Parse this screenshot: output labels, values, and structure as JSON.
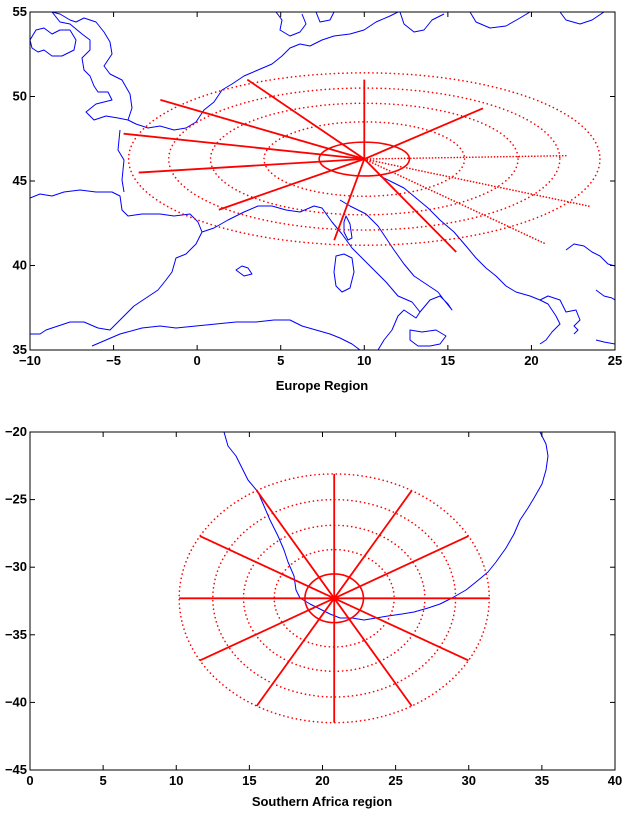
{
  "colors": {
    "coastline": "#0000ff",
    "grid": "#ff0000",
    "axes": "#000000",
    "background": "#ffffff"
  },
  "chart_data": [
    {
      "type": "map",
      "xlabel": "Europe Region",
      "xlim": [
        -10,
        25
      ],
      "ylim": [
        35,
        55
      ],
      "xticks": [
        -10,
        -5,
        0,
        5,
        10,
        15,
        20,
        25
      ],
      "yticks": [
        35,
        40,
        45,
        50,
        55
      ],
      "xtick_labels": [
        "−10",
        "−5",
        "0",
        "5",
        "10",
        "15",
        "20",
        "25"
      ],
      "ytick_labels": [
        "35",
        "40",
        "45",
        "50",
        "55"
      ],
      "grid": {
        "center": [
          10,
          46.3
        ],
        "rings": [
          {
            "rx": 2.7,
            "ry": 1.0,
            "style": "solid"
          },
          {
            "rx": 6.0,
            "ry": 2.2,
            "style": "dotted"
          },
          {
            "rx": 9.2,
            "ry": 3.3,
            "style": "dotted"
          },
          {
            "rx": 11.7,
            "ry": 4.2,
            "style": "dotted"
          },
          {
            "rx": 14.1,
            "ry": 5.1,
            "style": "dotted"
          }
        ],
        "spokes": [
          {
            "end": [
              -4.4,
              47.8
            ],
            "style": "solid"
          },
          {
            "end": [
              -2.2,
              49.8
            ],
            "style": "solid"
          },
          {
            "end": [
              3.0,
              51.0
            ],
            "style": "solid"
          },
          {
            "end": [
              10.0,
              51.0
            ],
            "style": "solid"
          },
          {
            "end": [
              17.1,
              49.3
            ],
            "style": "solid"
          },
          {
            "end": [
              22.1,
              46.5
            ],
            "style": "dotted"
          },
          {
            "end": [
              23.5,
              43.5
            ],
            "style": "dotted"
          },
          {
            "end": [
              20.8,
              41.3
            ],
            "style": "dotted"
          },
          {
            "end": [
              15.5,
              40.8
            ],
            "style": "solid"
          },
          {
            "end": [
              8.2,
              41.5
            ],
            "style": "solid"
          },
          {
            "end": [
              1.3,
              43.3
            ],
            "style": "solid"
          },
          {
            "end": [
              -3.5,
              45.5
            ],
            "style": "solid"
          }
        ]
      }
    },
    {
      "type": "map",
      "xlabel": "Southern Africa region",
      "xlim": [
        0,
        40
      ],
      "ylim": [
        -45,
        -20
      ],
      "xticks": [
        0,
        5,
        10,
        15,
        20,
        25,
        30,
        35,
        40
      ],
      "yticks": [
        -45,
        -40,
        -35,
        -30,
        -25,
        -20
      ],
      "xtick_labels": [
        "0",
        "5",
        "10",
        "15",
        "20",
        "25",
        "30",
        "35",
        "40"
      ],
      "ytick_labels": [
        "−45",
        "−40",
        "−35",
        "−30",
        "−25",
        "−20"
      ],
      "grid": {
        "center": [
          20.8,
          -32.3
        ],
        "rings": [
          {
            "rx": 2.0,
            "ry": 1.8,
            "style": "solid"
          },
          {
            "rx": 4.1,
            "ry": 3.6,
            "style": "dotted"
          },
          {
            "rx": 6.2,
            "ry": 5.4,
            "style": "dotted"
          },
          {
            "rx": 8.3,
            "ry": 7.3,
            "style": "dotted"
          },
          {
            "rx": 10.6,
            "ry": 9.2,
            "style": "dotted"
          }
        ],
        "spokes_count": 12,
        "spoke_length": [
          10.6,
          9.2
        ],
        "spoke_style": "solid"
      }
    }
  ]
}
